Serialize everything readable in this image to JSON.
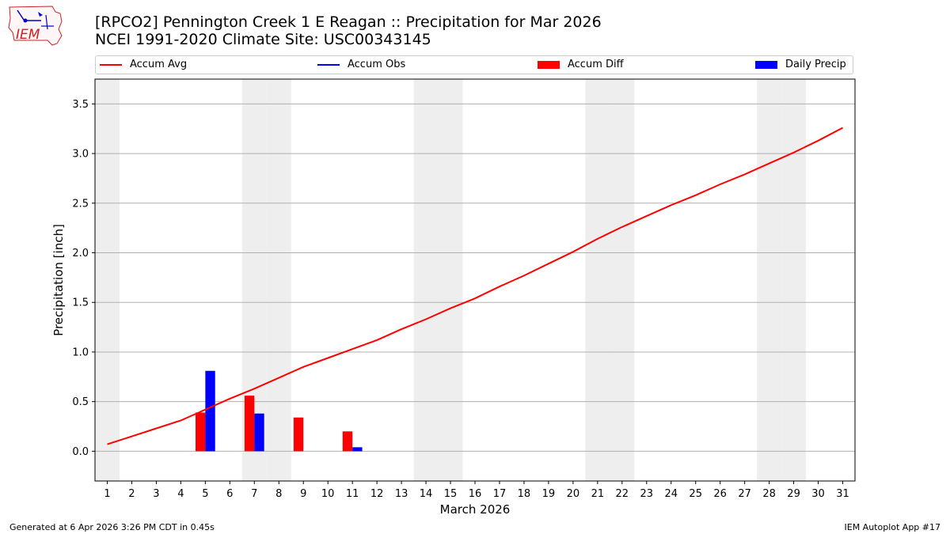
{
  "header": {
    "title_line1": "[RPCO2] Pennington Creek 1 E Reagan :: Precipitation for Mar 2026",
    "title_line2": "NCEI 1991-2020 Climate Site: USC00343145",
    "logo_text": "IEM"
  },
  "footer": {
    "generated": "Generated at 6 Apr 2026 3:26 PM CDT in 0.45s",
    "app": "IEM Autoplot App #17"
  },
  "colors": {
    "avg": "#ff0000",
    "obs": "#0000ff",
    "diff": "#ff0000",
    "daily": "#0000ff",
    "weekend": "#eeeeee",
    "grid": "#b0b0b0"
  },
  "chart_data": {
    "type": "bar",
    "title": "[RPCO2] Pennington Creek 1 E Reagan :: Precipitation for Mar 2026",
    "xlabel": "March 2026",
    "ylabel": "Precipitation [inch]",
    "xlim": [
      0.5,
      31.5
    ],
    "ylim": [
      -0.3,
      3.75
    ],
    "yticks": [
      0.0,
      0.5,
      1.0,
      1.5,
      2.0,
      2.5,
      3.0,
      3.5
    ],
    "ytick_labels": [
      "0.0",
      "0.5",
      "1.0",
      "1.5",
      "2.0",
      "2.5",
      "3.0",
      "3.5"
    ],
    "days": [
      1,
      2,
      3,
      4,
      5,
      6,
      7,
      8,
      9,
      10,
      11,
      12,
      13,
      14,
      15,
      16,
      17,
      18,
      19,
      20,
      21,
      22,
      23,
      24,
      25,
      26,
      27,
      28,
      29,
      30,
      31
    ],
    "weekend_days": [
      1,
      7,
      8,
      14,
      15,
      21,
      22,
      28,
      29
    ],
    "legend": [
      {
        "label": "Accum Avg",
        "kind": "line",
        "color": "#ff0000"
      },
      {
        "label": "Accum Obs",
        "kind": "line",
        "color": "#0000ff"
      },
      {
        "label": "Accum Diff",
        "kind": "box",
        "color": "#ff0000"
      },
      {
        "label": "Daily Precip",
        "kind": "box",
        "color": "#0000ff"
      }
    ],
    "series": [
      {
        "name": "Accum Avg",
        "kind": "line",
        "color": "#ff0000",
        "values": [
          0.07,
          0.15,
          0.23,
          0.31,
          0.42,
          0.53,
          0.63,
          0.74,
          0.85,
          0.94,
          1.03,
          1.12,
          1.23,
          1.33,
          1.44,
          1.54,
          1.66,
          1.77,
          1.89,
          2.01,
          2.14,
          2.26,
          2.37,
          2.48,
          2.58,
          2.69,
          2.79,
          2.9,
          3.01,
          3.13,
          3.26
        ]
      },
      {
        "name": "Accum Diff",
        "kind": "bar",
        "color": "#ff0000",
        "points": [
          {
            "day": 5,
            "value": 0.39
          },
          {
            "day": 7,
            "value": 0.56
          },
          {
            "day": 9,
            "value": 0.34
          },
          {
            "day": 11,
            "value": 0.2
          }
        ]
      },
      {
        "name": "Daily Precip",
        "kind": "bar",
        "color": "#0000ff",
        "points": [
          {
            "day": 5,
            "value": 0.81
          },
          {
            "day": 7,
            "value": 0.38
          },
          {
            "day": 11,
            "value": 0.04
          }
        ]
      }
    ]
  }
}
